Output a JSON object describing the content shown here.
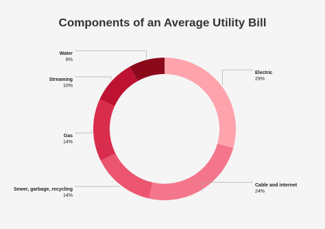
{
  "chart_data": {
    "type": "donut",
    "title": "Components of an Average Utility Bill",
    "categories": [
      "Electric",
      "Cable and internet",
      "Sewer, garbage, recycling",
      "Gas",
      "Streaming",
      "Water"
    ],
    "values": [
      29,
      24,
      14,
      14,
      10,
      8
    ],
    "value_labels": [
      "29%",
      "24%",
      "14%",
      "14%",
      "10%",
      "8%"
    ],
    "colors": [
      "#ffa3ad",
      "#f4768c",
      "#eb5570",
      "#d92d4d",
      "#bd1231",
      "#8a0a1c"
    ]
  }
}
